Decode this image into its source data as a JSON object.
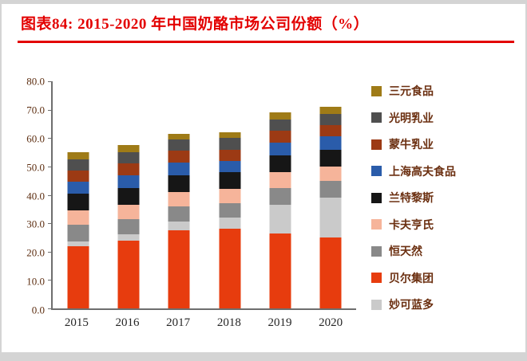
{
  "colors": {
    "accent_red": "#E30000"
  },
  "chart_data": {
    "type": "bar",
    "stacked": true,
    "title": "图表84: 2015-2020 年中国奶酪市场公司份额（%）",
    "xlabel": "",
    "ylabel": "",
    "ylim": [
      0,
      80
    ],
    "ytick_labels": [
      "0.0",
      "10.0",
      "20.0",
      "30.0",
      "40.0",
      "50.0",
      "60.0",
      "70.0",
      "80.0"
    ],
    "grid": false,
    "legend_position": "right",
    "categories": [
      "2015",
      "2016",
      "2017",
      "2018",
      "2019",
      "2020"
    ],
    "series": [
      {
        "name": "贝尔集团",
        "color": "#E73C0E",
        "values": [
          22.0,
          24.0,
          27.5,
          28.0,
          26.5,
          25.0
        ]
      },
      {
        "name": "妙可蓝多",
        "color": "#CACACA",
        "values": [
          1.5,
          2.0,
          3.0,
          4.0,
          10.0,
          14.0
        ]
      },
      {
        "name": "恒天然",
        "color": "#898989",
        "values": [
          6.0,
          5.5,
          5.5,
          5.0,
          6.0,
          6.0
        ]
      },
      {
        "name": "卡夫亨氏",
        "color": "#F6B49A",
        "values": [
          5.0,
          5.0,
          5.0,
          5.0,
          5.5,
          5.0
        ]
      },
      {
        "name": "兰特黎斯",
        "color": "#161616",
        "values": [
          6.0,
          6.0,
          6.0,
          6.0,
          6.0,
          6.0
        ]
      },
      {
        "name": "上海高夫食品",
        "color": "#2A5CAA",
        "values": [
          4.0,
          4.5,
          4.5,
          4.0,
          4.5,
          4.5
        ]
      },
      {
        "name": "蒙牛乳业",
        "color": "#9C3A14",
        "values": [
          4.0,
          4.0,
          4.0,
          4.0,
          4.0,
          4.0
        ]
      },
      {
        "name": "光明乳业",
        "color": "#4F4F4F",
        "values": [
          4.0,
          4.0,
          4.0,
          4.0,
          4.0,
          4.0
        ]
      },
      {
        "name": "三元食品",
        "color": "#9F7B17",
        "values": [
          2.5,
          2.5,
          2.0,
          2.0,
          2.5,
          2.5
        ]
      }
    ],
    "legend_order": [
      "三元食品",
      "光明乳业",
      "蒙牛乳业",
      "上海高夫食品",
      "兰特黎斯",
      "卡夫亨氏",
      "恒天然",
      "贝尔集团",
      "妙可蓝多"
    ]
  }
}
